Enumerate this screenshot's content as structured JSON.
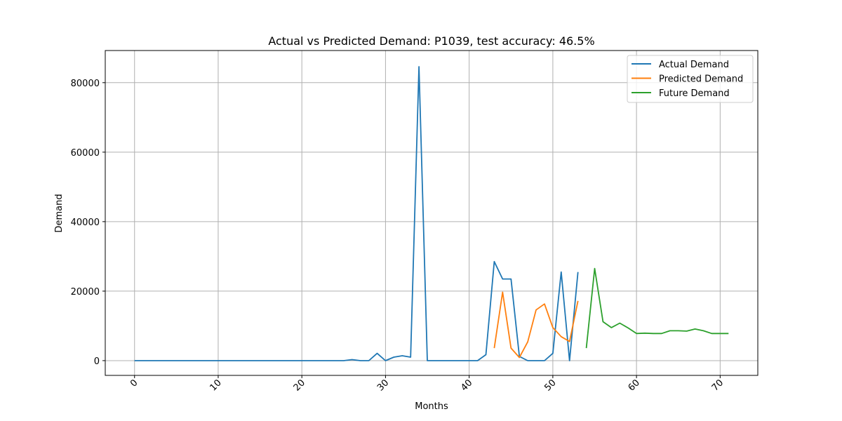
{
  "chart_data": {
    "type": "line",
    "title": "Actual vs Predicted Demand: P1039, test accuracy: 46.5%",
    "xlabel": "Months",
    "ylabel": "Demand",
    "xlim": [
      -3.5,
      74.5
    ],
    "ylim": [
      -4250,
      89250
    ],
    "xticks": [
      0,
      10,
      20,
      30,
      40,
      50,
      60,
      70
    ],
    "yticks": [
      0,
      20000,
      40000,
      60000,
      80000
    ],
    "xtick_rotation": 45,
    "grid": true,
    "legend_position": "top-right",
    "series": [
      {
        "name": "Actual Demand",
        "color": "#1f77b4",
        "points": [
          [
            0,
            0
          ],
          [
            1,
            0
          ],
          [
            2,
            0
          ],
          [
            3,
            0
          ],
          [
            4,
            0
          ],
          [
            5,
            0
          ],
          [
            6,
            0
          ],
          [
            7,
            0
          ],
          [
            8,
            0
          ],
          [
            9,
            0
          ],
          [
            10,
            0
          ],
          [
            11,
            0
          ],
          [
            12,
            0
          ],
          [
            13,
            0
          ],
          [
            14,
            0
          ],
          [
            15,
            0
          ],
          [
            16,
            0
          ],
          [
            17,
            0
          ],
          [
            18,
            0
          ],
          [
            19,
            0
          ],
          [
            20,
            0
          ],
          [
            21,
            0
          ],
          [
            22,
            0
          ],
          [
            23,
            0
          ],
          [
            24,
            0
          ],
          [
            25,
            0
          ],
          [
            26,
            300
          ],
          [
            27,
            0
          ],
          [
            28,
            0
          ],
          [
            29,
            2100
          ],
          [
            30,
            0
          ],
          [
            31,
            1000
          ],
          [
            32,
            1400
          ],
          [
            33,
            1000
          ],
          [
            34,
            84600
          ],
          [
            35,
            0
          ],
          [
            36,
            0
          ],
          [
            37,
            0
          ],
          [
            38,
            0
          ],
          [
            39,
            0
          ],
          [
            40,
            0
          ],
          [
            41,
            0
          ],
          [
            42,
            1700
          ],
          [
            43,
            28500
          ],
          [
            44,
            23500
          ],
          [
            45,
            23500
          ],
          [
            46,
            1200
          ],
          [
            47,
            0
          ],
          [
            48,
            0
          ],
          [
            49,
            0
          ],
          [
            50,
            2100
          ],
          [
            51,
            25500
          ],
          [
            52,
            0
          ],
          [
            53,
            25500
          ]
        ]
      },
      {
        "name": "Predicted Demand",
        "color": "#ff7f0e",
        "points": [
          [
            43,
            3600
          ],
          [
            44,
            19700
          ],
          [
            45,
            3600
          ],
          [
            46,
            900
          ],
          [
            47,
            5400
          ],
          [
            48,
            14600
          ],
          [
            49,
            16300
          ],
          [
            50,
            9500
          ],
          [
            51,
            6900
          ],
          [
            52,
            5500
          ],
          [
            53,
            17200
          ]
        ]
      },
      {
        "name": "Future Demand",
        "color": "#2ca02c",
        "points": [
          [
            54,
            3600
          ],
          [
            55,
            26500
          ],
          [
            56,
            11200
          ],
          [
            57,
            9500
          ],
          [
            58,
            10800
          ],
          [
            59,
            9400
          ],
          [
            60,
            7800
          ],
          [
            61,
            7900
          ],
          [
            62,
            7800
          ],
          [
            63,
            7800
          ],
          [
            64,
            8600
          ],
          [
            65,
            8600
          ],
          [
            66,
            8500
          ],
          [
            67,
            9100
          ],
          [
            68,
            8600
          ],
          [
            69,
            7800
          ],
          [
            70,
            7800
          ],
          [
            71,
            7800
          ]
        ]
      }
    ]
  }
}
